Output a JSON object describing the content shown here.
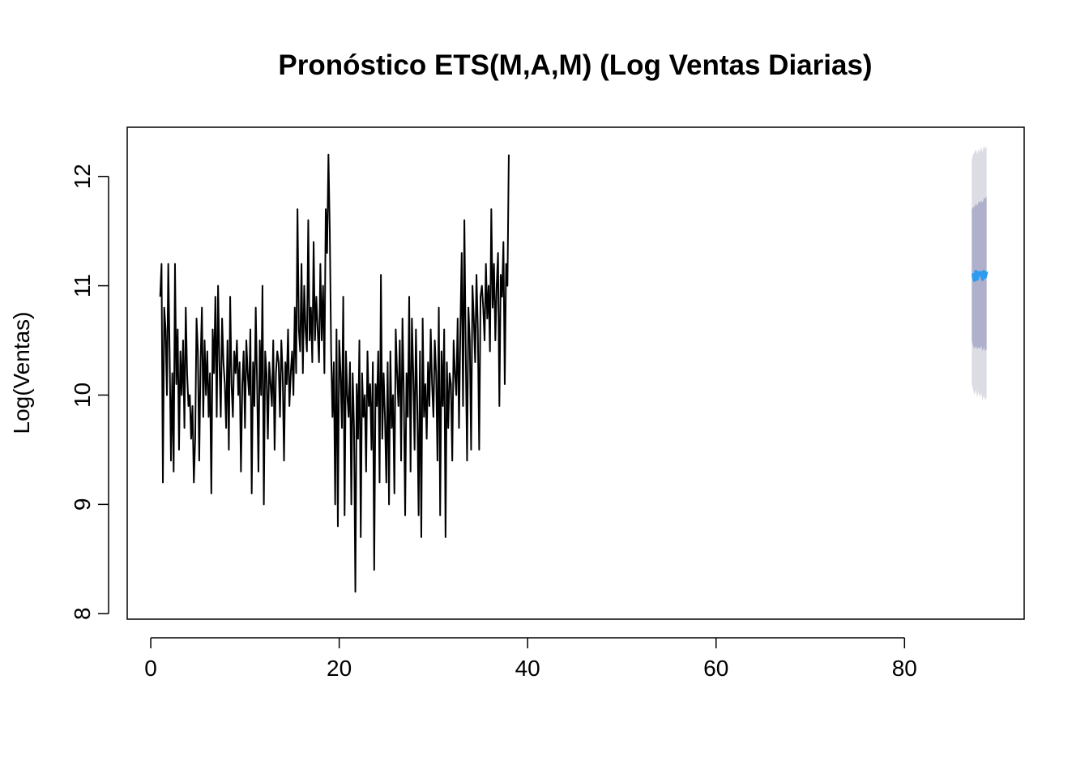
{
  "chart_data": {
    "type": "line",
    "title": "Pronóstico ETS(M,A,M) (Log Ventas Diarias)",
    "xlabel": "",
    "ylabel": "Log(Ventas)",
    "xlim": [
      -2.5,
      92.7
    ],
    "ylim": [
      7.95,
      12.45
    ],
    "x_ticks": [
      0,
      20,
      40,
      60,
      80
    ],
    "y_ticks": [
      8,
      9,
      10,
      11,
      12
    ],
    "grid": false,
    "legend": "none",
    "frequency": 7,
    "start": 1,
    "series": [
      {
        "values": [
          10.9,
          11.2,
          9.2,
          10.8,
          10.6,
          10.0,
          11.2,
          10.4,
          9.4,
          10.2,
          9.3,
          11.2,
          10.1,
          10.6,
          9.5,
          10.4,
          10.0,
          10.5,
          9.7,
          10.8,
          10.2,
          9.9,
          10.0,
          9.6,
          9.9,
          9.2,
          9.6,
          10.7,
          10.4,
          9.4,
          10.3,
          10.8,
          9.8,
          10.5,
          10.0,
          10.4,
          9.8,
          10.2,
          9.1,
          10.6,
          10.2,
          10.9,
          9.8,
          11.0,
          10.3,
          9.8,
          10.7,
          10.3,
          10.1,
          9.7,
          10.5,
          9.5,
          10.9,
          10.1,
          9.8,
          10.4,
          10.2,
          10.5,
          10.0,
          10.3,
          9.3,
          10.1,
          10.4,
          9.7,
          10.5,
          10.2,
          10.0,
          10.6,
          9.1,
          10.3,
          9.9,
          10.8,
          10.1,
          9.3,
          10.5,
          10.0,
          11.0,
          9.0,
          10.4,
          10.2,
          9.6,
          10.3,
          10.1,
          9.9,
          10.5,
          9.5,
          10.2,
          10.4,
          10.3,
          9.8,
          10.5,
          10.2,
          9.4,
          10.3,
          10.1,
          10.6,
          9.9,
          10.2,
          10.4,
          10.0,
          10.8,
          10.2,
          11.7,
          10.6,
          10.4,
          11.2,
          10.2,
          11.0,
          10.6,
          10.4,
          11.6,
          10.5,
          10.8,
          10.3,
          11.4,
          10.5,
          10.9,
          10.6,
          10.3,
          11.2,
          10.5,
          11.0,
          10.2,
          11.7,
          11.3,
          12.2,
          11.5,
          10.4,
          9.8,
          10.3,
          9.0,
          10.6,
          8.8,
          10.5,
          10.2,
          9.7,
          10.9,
          8.9,
          10.4,
          10.0,
          9.8,
          10.3,
          9.0,
          10.2,
          9.7,
          8.2,
          10.1,
          9.6,
          10.5,
          8.7,
          10.2,
          9.8,
          10.0,
          9.3,
          10.4,
          9.9,
          10.1,
          9.5,
          10.3,
          8.4,
          10.1,
          9.9,
          10.4,
          9.2,
          11.1,
          9.6,
          10.2,
          9.8,
          9.2,
          10.3,
          9.0,
          10.4,
          9.7,
          10.0,
          9.1,
          10.6,
          10.2,
          9.9,
          10.5,
          9.4,
          10.7,
          10.0,
          8.9,
          10.2,
          9.8,
          10.9,
          9.3,
          10.7,
          10.2,
          9.5,
          10.6,
          9.9,
          8.9,
          10.4,
          8.7,
          10.7,
          9.8,
          10.1,
          9.6,
          10.3,
          9.9,
          10.6,
          10.1,
          9.8,
          10.5,
          10.2,
          9.4,
          10.8,
          8.9,
          10.4,
          9.9,
          10.6,
          8.7,
          10.3,
          9.7,
          10.2,
          10.1,
          9.4,
          10.5,
          10.2,
          10.0,
          10.7,
          9.7,
          10.6,
          11.3,
          9.9,
          11.6,
          10.4,
          9.4,
          10.8,
          10.5,
          9.5,
          11.0,
          10.7,
          10.3,
          11.1,
          10.6,
          9.5,
          10.9,
          11.0,
          10.8,
          10.5,
          11.2,
          10.7,
          11.0,
          10.4,
          11.7,
          10.8,
          11.2,
          10.5,
          11.0,
          11.3,
          9.9,
          11.1,
          10.9,
          11.4,
          10.1,
          11.2,
          11.0,
          12.2
        ],
        "color": "#000000"
      },
      {
        "name": "forecast",
        "start": 87.14,
        "values": [
          11.1,
          11.1,
          11.05,
          11.13,
          11.06,
          11.12,
          11.1,
          11.12,
          11.06,
          11.13,
          11.08,
          11.13
        ],
        "color": "#2d9bf0"
      }
    ],
    "intervals": [
      {
        "level": "80%",
        "lower": [
          10.5,
          10.45,
          10.42,
          10.45,
          10.42,
          10.44,
          10.42,
          10.45,
          10.4,
          10.44,
          10.4,
          10.42
        ],
        "upper": [
          11.7,
          11.72,
          11.72,
          11.75,
          11.73,
          11.77,
          11.76,
          11.78,
          11.76,
          11.8,
          11.8,
          11.82
        ],
        "color": "#aeb0cc"
      },
      {
        "level": "95%",
        "lower": [
          10.1,
          10.05,
          10.0,
          10.05,
          9.98,
          10.03,
          9.98,
          10.02,
          9.95,
          10.0,
          9.95,
          9.98
        ],
        "upper": [
          12.15,
          12.2,
          12.22,
          12.25,
          12.2,
          12.25,
          12.22,
          12.27,
          12.22,
          12.28,
          12.25,
          12.28
        ],
        "color": "#dcdce4"
      }
    ]
  }
}
